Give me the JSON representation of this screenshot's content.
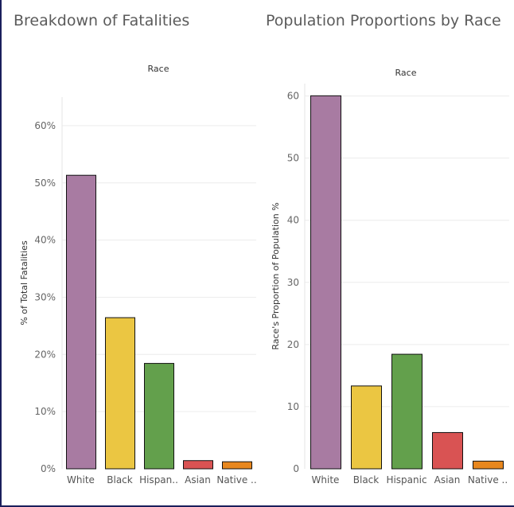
{
  "chart_data": [
    {
      "type": "bar",
      "title": "Breakdown of Fatalities",
      "header": "Race",
      "ylabel": "% of Total Fatalities",
      "categories": [
        "White",
        "Black",
        "Hispan..",
        "Asian",
        "Native .."
      ],
      "values": [
        51.4,
        26.5,
        18.5,
        1.5,
        1.3
      ],
      "ylim": [
        0,
        65
      ],
      "yticks": [
        0,
        10,
        20,
        30,
        40,
        50,
        60
      ],
      "ytick_labels": [
        "0%",
        "10%",
        "20%",
        "30%",
        "40%",
        "50%",
        "60%"
      ],
      "colors": [
        "#a87ba2",
        "#ebc642",
        "#63a04c",
        "#d95353",
        "#e8871e"
      ],
      "grid": true
    },
    {
      "type": "bar",
      "title": "Population Proportions by Race",
      "header": "Race",
      "ylabel": "Race's Proportion of Population %",
      "categories": [
        "White",
        "Black",
        "Hispanic",
        "Asian",
        "Native .."
      ],
      "values": [
        60.1,
        13.4,
        18.5,
        5.9,
        1.3
      ],
      "ylim": [
        0,
        62
      ],
      "yticks": [
        0,
        10,
        20,
        30,
        40,
        50,
        60
      ],
      "ytick_labels": [
        "0",
        "10",
        "20",
        "30",
        "40",
        "50",
        "60"
      ],
      "colors": [
        "#a87ba2",
        "#ebc642",
        "#63a04c",
        "#d95353",
        "#e8871e"
      ],
      "grid": true
    }
  ]
}
